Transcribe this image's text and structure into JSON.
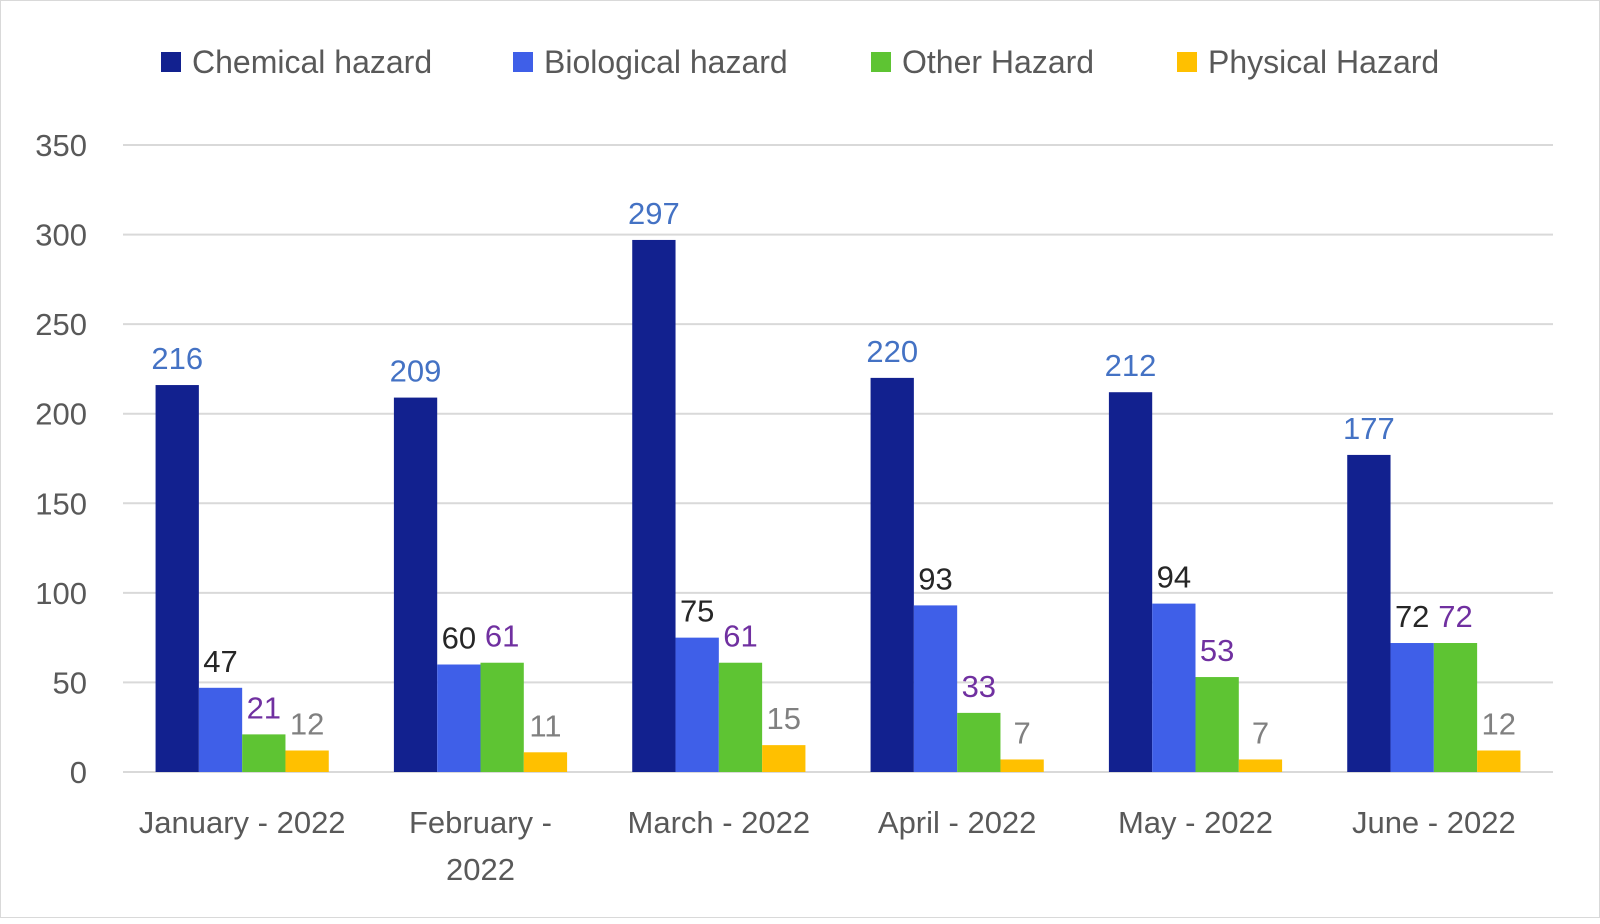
{
  "chart_data": {
    "type": "bar",
    "categories": [
      "January - 2022",
      "February - 2022",
      "March - 2022",
      "April - 2022",
      "May - 2022",
      "June - 2022"
    ],
    "category_lines": [
      [
        "January - 2022"
      ],
      [
        "February -",
        "2022"
      ],
      [
        "March - 2022"
      ],
      [
        "April - 2022"
      ],
      [
        "May - 2022"
      ],
      [
        "June - 2022"
      ]
    ],
    "series": [
      {
        "name": "Chemical hazard",
        "color": "#12218F",
        "label_color": "#4472C4",
        "values": [
          216,
          209,
          297,
          220,
          212,
          177
        ]
      },
      {
        "name": "Biological hazard",
        "color": "#3F5FE8",
        "label_color": "#262626",
        "values": [
          47,
          60,
          75,
          93,
          94,
          72
        ]
      },
      {
        "name": "Other Hazard",
        "color": "#5EC433",
        "label_color": "#7030A0",
        "values": [
          21,
          61,
          61,
          33,
          53,
          72
        ]
      },
      {
        "name": "Physical Hazard",
        "color": "#FFC000",
        "label_color": "#808080",
        "values": [
          12,
          11,
          15,
          7,
          7,
          12
        ]
      }
    ],
    "ylim": [
      0,
      350
    ],
    "yticks": [
      0,
      50,
      100,
      150,
      200,
      250,
      300,
      350
    ],
    "grid": true,
    "legend": "top",
    "title": "",
    "xlabel": "",
    "ylabel": ""
  }
}
